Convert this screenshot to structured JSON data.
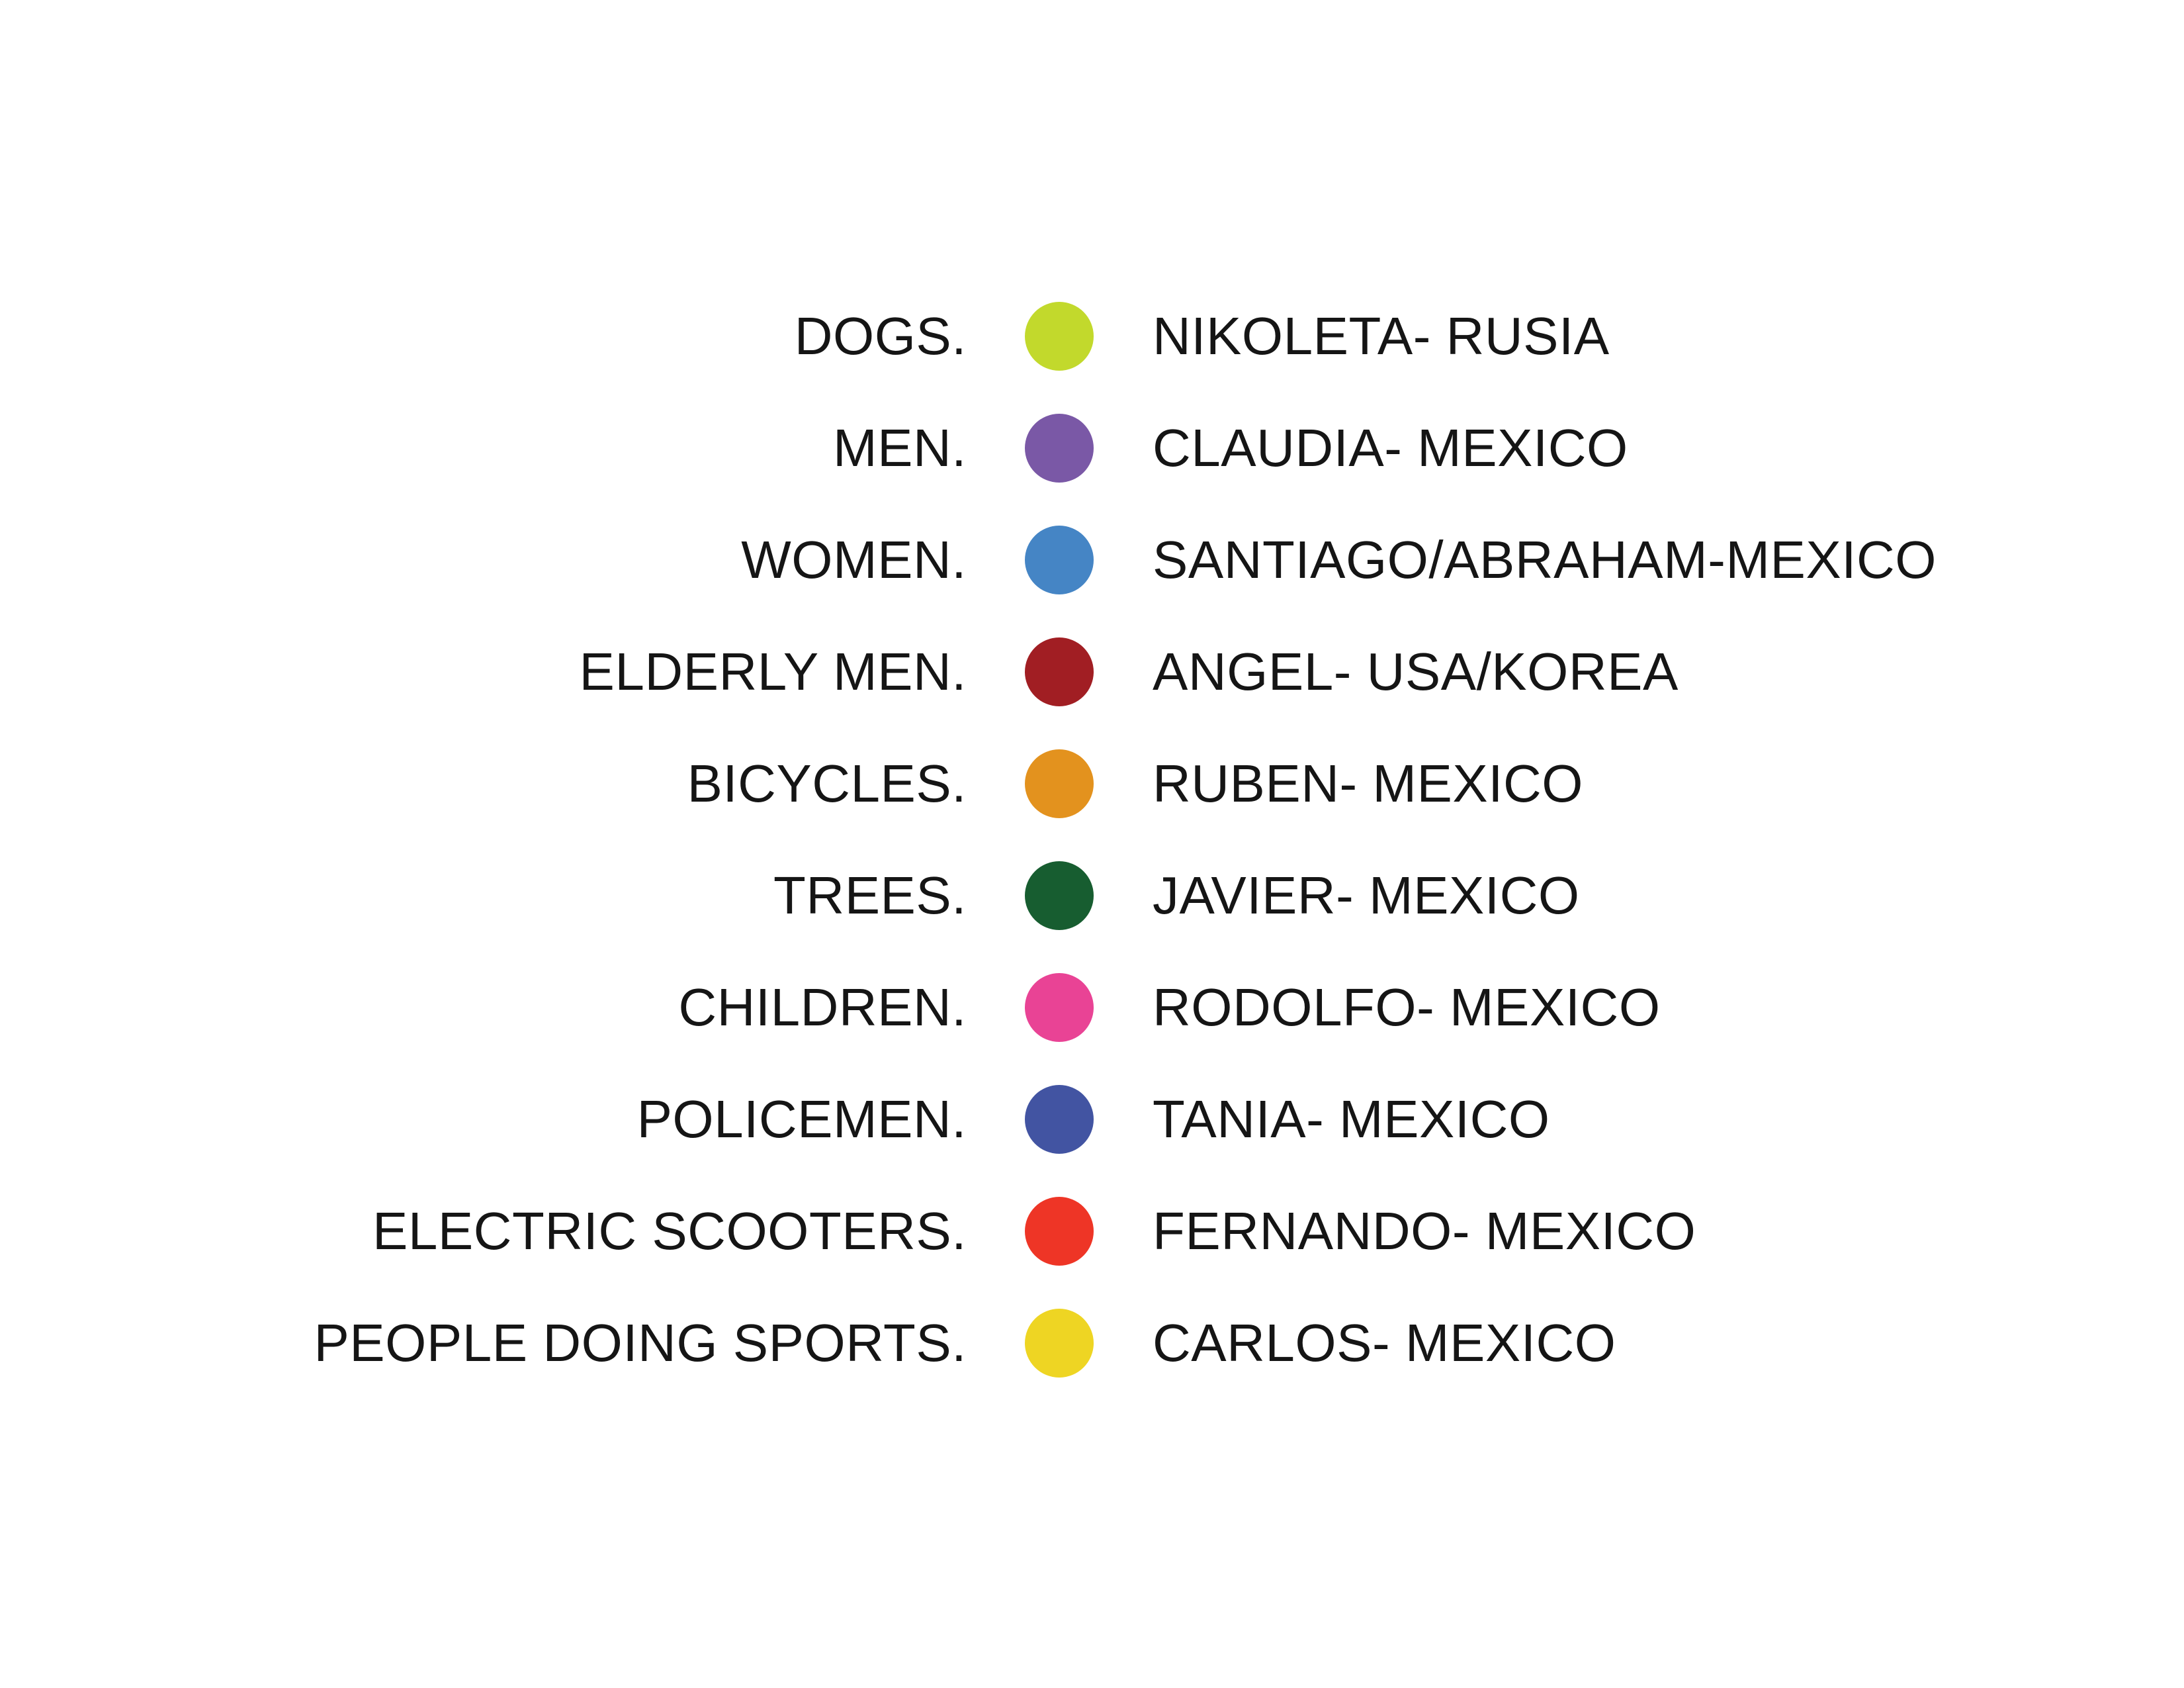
{
  "legend": {
    "rows": [
      {
        "category": "DOGS.",
        "color": "#C2D92C",
        "person": "NIKOLETA- RUSIA"
      },
      {
        "category": "MEN.",
        "color": "#7A58A6",
        "person": "CLAUDIA- MEXICO"
      },
      {
        "category": "WOMEN.",
        "color": "#4585C5",
        "person": "SANTIAGO/ABRAHAM-MEXICO"
      },
      {
        "category": "ELDERLY MEN.",
        "color": "#A11E23",
        "person": "ANGEL- USA/KOREA"
      },
      {
        "category": "BICYCLES.",
        "color": "#E3921E",
        "person": "RUBEN- MEXICO"
      },
      {
        "category": "TREES.",
        "color": "#175D30",
        "person": "JAVIER- MEXICO"
      },
      {
        "category": "CHILDREN.",
        "color": "#E94395",
        "person": "RODOLFO- MEXICO"
      },
      {
        "category": "POLICEMEN.",
        "color": "#4254A2",
        "person": "TANIA- MEXICO"
      },
      {
        "category": "ELECTRIC SCOOTERS.",
        "color": "#EE3526",
        "person": "FERNANDO- MEXICO"
      },
      {
        "category": "PEOPLE DOING SPORTS.",
        "color": "#EED523",
        "person": "CARLOS- MEXICO"
      }
    ]
  }
}
